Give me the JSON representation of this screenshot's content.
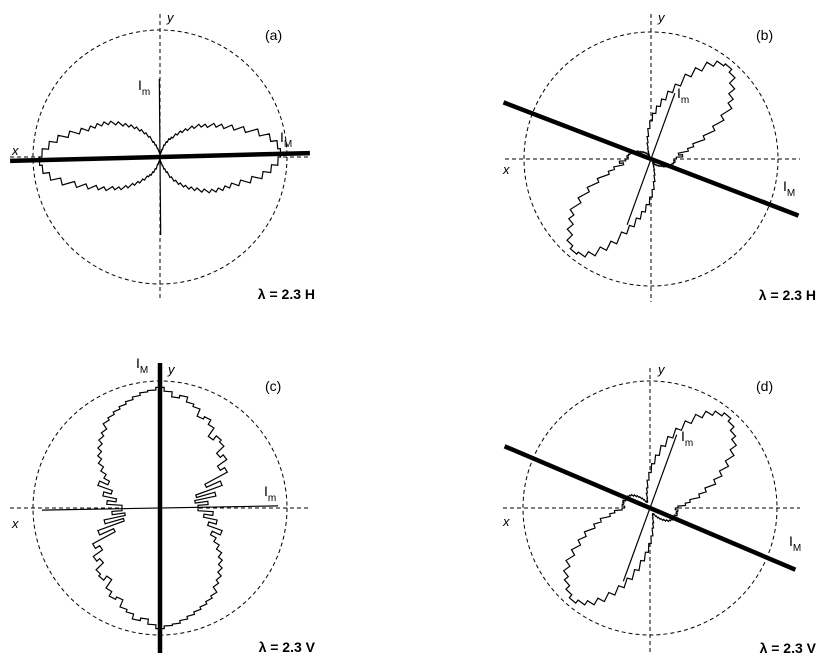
{
  "axes": {
    "x_label": "x",
    "y_label": "y"
  },
  "intensity_labels": {
    "major_symbol": "I",
    "major_sub": "M",
    "minor_symbol": "I",
    "minor_sub": "m"
  },
  "panels": [
    {
      "id": "a",
      "label": "(a)",
      "condition": "λ = 2.3 H",
      "major_angle_deg": 1.5,
      "minor_angle_deg": 90.5,
      "profile": [
        0.95,
        0.93,
        0.88,
        0.8,
        0.7,
        0.62,
        0.55,
        0.5,
        0.44,
        0.4,
        0.35,
        0.3,
        0.26,
        0.22,
        0.18,
        0.16,
        0.13,
        0.1,
        0.06,
        0.04,
        0.03,
        0.02,
        0.02,
        0.03,
        0.04,
        0.05,
        0.07,
        0.1,
        0.13,
        0.18,
        0.22,
        0.26,
        0.3,
        0.34,
        0.38,
        0.43,
        0.48,
        0.52,
        0.56,
        0.6,
        0.66,
        0.74,
        0.82,
        0.88,
        0.93
      ]
    },
    {
      "id": "b",
      "label": "(b)",
      "condition": "λ = 2.3 H",
      "major_angle_deg": -21,
      "minor_angle_deg": 70,
      "profile": [
        0.2,
        0.25,
        0.22,
        0.3,
        0.35,
        0.45,
        0.55,
        0.65,
        0.75,
        0.8,
        0.86,
        0.92,
        0.95,
        0.93,
        0.88,
        0.8,
        0.72,
        0.62,
        0.55,
        0.48,
        0.42,
        0.36,
        0.3,
        0.24,
        0.18,
        0.13,
        0.09,
        0.06,
        0.04,
        0.03,
        0.04,
        0.05,
        0.06,
        0.07,
        0.08,
        0.09,
        0.1,
        0.12,
        0.13,
        0.15,
        0.16,
        0.17,
        0.18,
        0.19,
        0.18
      ]
    },
    {
      "id": "c",
      "label": "(c)",
      "condition": "λ = 2.3 V",
      "major_angle_deg": 90,
      "minor_angle_deg": 1,
      "profile": [
        0.3,
        0.38,
        0.28,
        0.45,
        0.3,
        0.52,
        0.4,
        0.6,
        0.56,
        0.65,
        0.62,
        0.7,
        0.72,
        0.68,
        0.76,
        0.8,
        0.78,
        0.84,
        0.86,
        0.9,
        0.88,
        0.92,
        0.95,
        0.93,
        0.92,
        0.9,
        0.88,
        0.86,
        0.84,
        0.82,
        0.8,
        0.75,
        0.72,
        0.68,
        0.64,
        0.6,
        0.55,
        0.5,
        0.45,
        0.52,
        0.4,
        0.46,
        0.35,
        0.42,
        0.3
      ]
    },
    {
      "id": "d",
      "label": "(d)",
      "condition": "λ = 2.3 V",
      "major_angle_deg": -23,
      "minor_angle_deg": 70,
      "profile": [
        0.22,
        0.28,
        0.32,
        0.4,
        0.46,
        0.55,
        0.62,
        0.7,
        0.78,
        0.84,
        0.88,
        0.92,
        0.95,
        0.92,
        0.88,
        0.82,
        0.74,
        0.66,
        0.58,
        0.5,
        0.42,
        0.35,
        0.28,
        0.22,
        0.16,
        0.12,
        0.08,
        0.06,
        0.05,
        0.05,
        0.06,
        0.08,
        0.1,
        0.12,
        0.14,
        0.16,
        0.18,
        0.19,
        0.2,
        0.21,
        0.2,
        0.22,
        0.21,
        0.22,
        0.2
      ]
    }
  ]
}
